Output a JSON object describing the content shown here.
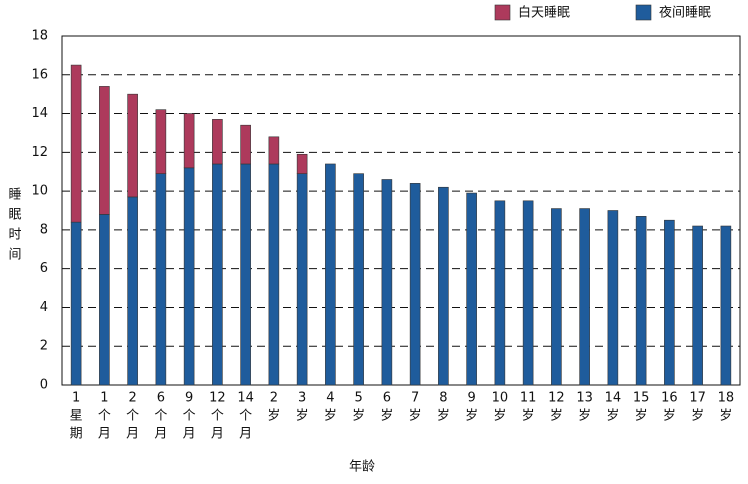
{
  "chart_data": {
    "type": "stacked-bar",
    "y_label": "睡眠时间",
    "x_label": "年龄",
    "categories": [
      [
        "1",
        "星",
        "期"
      ],
      [
        "1",
        "个",
        "月"
      ],
      [
        "2",
        "个",
        "月"
      ],
      [
        "6",
        "个",
        "月"
      ],
      [
        "9",
        "个",
        "月"
      ],
      [
        "12",
        "个",
        "月"
      ],
      [
        "14",
        "个",
        "月"
      ],
      [
        "2",
        "岁"
      ],
      [
        "3",
        "岁"
      ],
      [
        "4",
        "岁"
      ],
      [
        "5",
        "岁"
      ],
      [
        "6",
        "岁"
      ],
      [
        "7",
        "岁"
      ],
      [
        "8",
        "岁"
      ],
      [
        "9",
        "岁"
      ],
      [
        "10",
        "岁"
      ],
      [
        "11",
        "岁"
      ],
      [
        "12",
        "岁"
      ],
      [
        "13",
        "岁"
      ],
      [
        "14",
        "岁"
      ],
      [
        "15",
        "岁"
      ],
      [
        "16",
        "岁"
      ],
      [
        "17",
        "岁"
      ],
      [
        "18",
        "岁"
      ]
    ],
    "series": [
      {
        "name": "夜间睡眠",
        "color": "#1f5c9c",
        "values": [
          8.4,
          8.8,
          9.7,
          10.9,
          11.2,
          11.4,
          11.4,
          11.4,
          10.9,
          11.4,
          10.9,
          10.6,
          10.4,
          10.2,
          9.9,
          9.5,
          9.5,
          9.1,
          9.1,
          9.0,
          8.7,
          8.5,
          8.2,
          8.2
        ]
      },
      {
        "name": "白天睡眠",
        "color": "#ad3a5c",
        "values": [
          8.1,
          6.6,
          5.3,
          3.3,
          2.8,
          2.3,
          2.0,
          1.4,
          1.0,
          null,
          null,
          null,
          null,
          null,
          null,
          null,
          null,
          null,
          null,
          null,
          null,
          null,
          null,
          null
        ]
      }
    ],
    "ylim": [
      0,
      18
    ],
    "yticks": [
      0,
      2,
      4,
      6,
      8,
      10,
      12,
      14,
      16,
      18
    ],
    "grid": true
  }
}
